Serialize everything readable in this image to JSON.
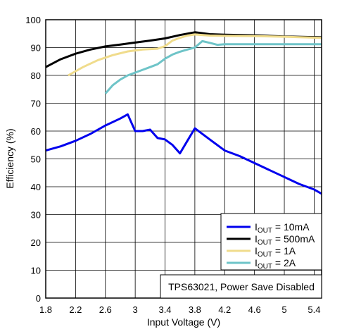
{
  "chart_data": {
    "type": "line",
    "xlabel": "Input Voltage (V)",
    "ylabel": "Efficiency (%)",
    "xlim": [
      1.8,
      5.5
    ],
    "ylim": [
      0,
      100
    ],
    "xticks": [
      "1.8",
      "2.2",
      "2.6",
      "3",
      "3.4",
      "3.8",
      "4.2",
      "4.6",
      "5",
      "5.4"
    ],
    "yticks": [
      "0",
      "10",
      "20",
      "30",
      "40",
      "50",
      "60",
      "70",
      "80",
      "90",
      "100"
    ],
    "grid": true,
    "legend_position": "lower-right",
    "annotation": "TPS63021, Power Save Disabled",
    "series": [
      {
        "name": "IOUT = 10mA",
        "label_main": "I",
        "label_sub": "OUT",
        "label_rest": " = 10mA",
        "color": "#0000ee",
        "x": [
          1.8,
          2.0,
          2.2,
          2.4,
          2.6,
          2.8,
          2.9,
          2.95,
          3.0,
          3.1,
          3.2,
          3.3,
          3.4,
          3.5,
          3.6,
          3.7,
          3.8,
          4.0,
          4.2,
          4.4,
          4.6,
          4.8,
          5.0,
          5.2,
          5.4,
          5.5
        ],
        "y": [
          53,
          54.5,
          56.5,
          59,
          62,
          64.5,
          66,
          63,
          60,
          60,
          60.5,
          57.5,
          57,
          55,
          52,
          56.5,
          61,
          57,
          53,
          51,
          48.5,
          46,
          43.5,
          41,
          39,
          37.5
        ]
      },
      {
        "name": "IOUT = 500mA",
        "label_main": "I",
        "label_sub": "OUT",
        "label_rest": " = 500mA",
        "color": "#000000",
        "x": [
          1.8,
          2.0,
          2.2,
          2.4,
          2.6,
          2.8,
          3.0,
          3.2,
          3.4,
          3.6,
          3.8,
          4.0,
          4.2,
          4.6,
          5.0,
          5.5
        ],
        "y": [
          83,
          85.8,
          87.8,
          89.3,
          90.4,
          91.1,
          91.8,
          92.5,
          93.3,
          94.5,
          95.5,
          94.8,
          94.6,
          94.4,
          94,
          93.7
        ]
      },
      {
        "name": "IOUT = 1A",
        "label_main": "I",
        "label_sub": "OUT",
        "label_rest": " = 1A",
        "color": "#f0dc8c",
        "x": [
          2.1,
          2.3,
          2.5,
          2.7,
          2.9,
          3.1,
          3.3,
          3.4,
          3.5,
          3.6,
          3.7,
          3.8,
          4.0,
          4.2,
          4.6,
          5.0,
          5.5
        ],
        "y": [
          80,
          83,
          85.5,
          87.3,
          88.6,
          89.3,
          89.6,
          90.5,
          92.5,
          93.5,
          94.3,
          94.7,
          94.3,
          94.2,
          94.1,
          93.9,
          93.5
        ]
      },
      {
        "name": "IOUT = 2A",
        "label_main": "I",
        "label_sub": "OUT",
        "label_rest": " = 2A",
        "color": "#6ec4c8",
        "x": [
          2.6,
          2.7,
          2.8,
          2.9,
          3.0,
          3.1,
          3.2,
          3.3,
          3.4,
          3.5,
          3.6,
          3.7,
          3.8,
          3.9,
          4.0,
          4.1,
          4.2,
          4.6,
          5.0,
          5.5
        ],
        "y": [
          73.5,
          76.5,
          78.5,
          80,
          81,
          82,
          83,
          84,
          86,
          87.5,
          88.5,
          89.3,
          90,
          92.3,
          91.7,
          91,
          91.2,
          91.2,
          91.2,
          91.2
        ]
      }
    ]
  }
}
